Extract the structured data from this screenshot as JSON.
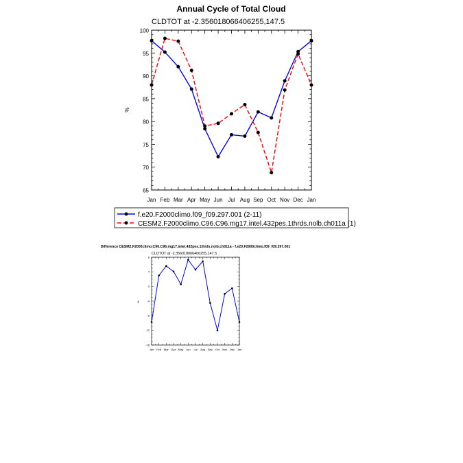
{
  "chart_data": [
    {
      "type": "line",
      "title": "Annual Cycle of Total Cloud",
      "subtitle": "CLDTOT at -2.356018066406255,147.5",
      "xlabel": "",
      "ylabel": "%",
      "categories": [
        "Jan",
        "Feb",
        "Mar",
        "Apr",
        "May",
        "Jun",
        "Jul",
        "Aug",
        "Sep",
        "Oct",
        "Nov",
        "Dec",
        "Jan"
      ],
      "ylim": [
        65,
        100
      ],
      "yticks": [
        "65",
        "70",
        "75",
        "80",
        "85",
        "90",
        "95",
        "100"
      ],
      "grid": false,
      "legend_position": "below",
      "series": [
        {
          "name": "f.e20.F2000climo.f09_f09.297.001 (2-11)",
          "color": "#0000ff",
          "dash": "solid",
          "values": [
            97.7,
            95.2,
            92.0,
            87.1,
            78.4,
            72.3,
            77.1,
            76.8,
            82.1,
            80.8,
            88.9,
            95.3,
            97.7
          ]
        },
        {
          "name": "CESM2.F2000climo.C96.C96.mg17.intel.432pes.1thrds.nolb.ch011a (1)",
          "color": "#ff0000",
          "dash": "dashed",
          "values": [
            88.0,
            98.2,
            97.6,
            91.2,
            79.0,
            79.6,
            81.7,
            83.7,
            77.6,
            68.8,
            86.9,
            94.8,
            88.0
          ]
        }
      ]
    },
    {
      "type": "line",
      "title": "Difference CESM2.F2000climo.C96.C96.mg17.intel.432pes.1thrds.nolb.ch011a - f.e20.F2000climo.f09_f09.297.001",
      "subtitle": "CLDTOT at -2.356018066406255,147.5",
      "xlabel": "",
      "ylabel": "%",
      "categories": [
        "Jan",
        "Feb",
        "Mar",
        "Apr",
        "May",
        "Jun",
        "Jul",
        "Aug",
        "Sep",
        "Oct",
        "Nov",
        "Dec",
        "Jan"
      ],
      "ylim": [
        -16,
        8
      ],
      "yticks": [
        "-16",
        "-12",
        "-8",
        "-4",
        "0",
        "4",
        "8"
      ],
      "grid": false,
      "series": [
        {
          "name": "",
          "color": "#0000ff",
          "dash": "solid",
          "values": [
            -9.7,
            3.0,
            5.6,
            4.1,
            0.6,
            7.3,
            4.6,
            6.9,
            -4.5,
            -12.0,
            -2.0,
            -0.5,
            -9.7
          ]
        }
      ]
    }
  ]
}
